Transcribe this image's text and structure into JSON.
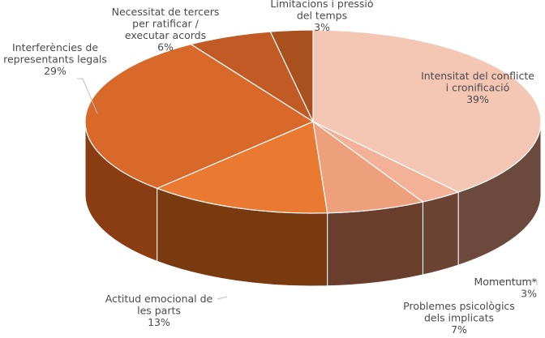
{
  "chart_data": {
    "type": "pie",
    "style": "3d",
    "title": "",
    "slices": [
      {
        "label": "Intensitat del conflicte i cronificació",
        "lines": [
          "Intensitat del conflicte",
          "i cronificació",
          "39%"
        ],
        "value": 39,
        "color": "#f4c6b4",
        "side": "#6b4a3d"
      },
      {
        "label": "Momentum*",
        "lines": [
          "Momentum*",
          "3%"
        ],
        "value": 3,
        "color": "#f3b298",
        "side": "#6b4434"
      },
      {
        "label": "Problemes psicològics dels implicats",
        "lines": [
          "Problemes psicològics",
          "dels implicats",
          "7%"
        ],
        "value": 7,
        "color": "#ee9f7c",
        "side": "#6a3e2c"
      },
      {
        "label": "Actitud emocional de les parts",
        "lines": [
          "Actitud emocional de",
          "les parts",
          "13%"
        ],
        "value": 13,
        "color": "#ea7a32",
        "side": "#7a3a10"
      },
      {
        "label": "Interferències de representants legals",
        "lines": [
          "Interferències de",
          "representants legals",
          "29%"
        ],
        "value": 29,
        "color": "#d9682b",
        "side": "#8a3c12"
      },
      {
        "label": "Necessitat de tercers per ratificar / executar acords",
        "lines": [
          "Necessitat de tercers",
          "per ratificar /",
          "executar acords",
          "6%"
        ],
        "value": 6,
        "color": "#c15a24",
        "side": "#7c3512"
      },
      {
        "label": "Limitacions i pressió del temps",
        "lines": [
          "Limitacions i pressió",
          "del temps",
          "3%"
        ],
        "value": 3,
        "color": "#a9501f",
        "side": "#6e2f0f"
      }
    ]
  }
}
